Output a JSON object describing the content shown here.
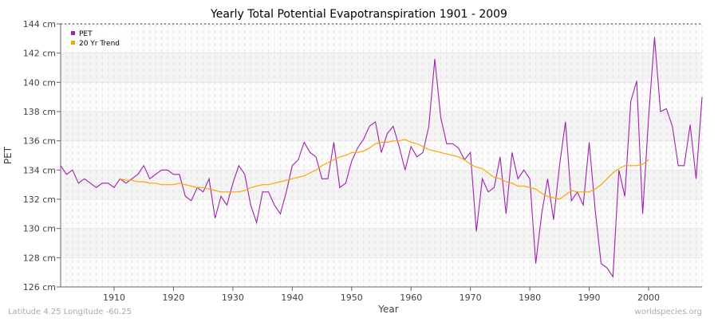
{
  "chart_data": {
    "type": "line",
    "title": "Yearly Total Potential Evapotranspiration 1901 - 2009",
    "xlabel": "Year",
    "ylabel": "PET",
    "ylim": [
      126,
      144
    ],
    "xlim": [
      1901,
      2009
    ],
    "yticks": [
      126,
      128,
      130,
      132,
      134,
      136,
      138,
      140,
      142,
      144
    ],
    "ytick_labels": [
      "126 cm",
      "128 cm",
      "130 cm",
      "132 cm",
      "134 cm",
      "136 cm",
      "138 cm",
      "140 cm",
      "142 cm",
      "144 cm"
    ],
    "xticks": [
      1910,
      1920,
      1930,
      1940,
      1950,
      1960,
      1970,
      1980,
      1990,
      2000
    ],
    "grid": true,
    "legend_position": "top-left",
    "series": [
      {
        "name": "PET",
        "color": "#a020b0",
        "x_start": 1901,
        "values": [
          134.3,
          133.7,
          134.0,
          133.1,
          133.4,
          133.1,
          132.8,
          133.1,
          133.1,
          132.8,
          133.4,
          133.1,
          133.4,
          133.7,
          134.3,
          133.4,
          133.7,
          134.0,
          134.0,
          133.7,
          133.7,
          132.2,
          131.9,
          132.8,
          132.5,
          133.4,
          130.7,
          132.2,
          131.6,
          133.1,
          134.3,
          133.7,
          131.6,
          130.4,
          132.5,
          132.5,
          131.6,
          131.0,
          132.5,
          134.3,
          134.7,
          135.9,
          135.2,
          134.9,
          133.4,
          133.4,
          135.9,
          132.8,
          133.1,
          134.6,
          135.5,
          136.1,
          137.0,
          137.3,
          135.2,
          136.5,
          137.0,
          135.6,
          134.0,
          135.6,
          134.9,
          135.2,
          137.0,
          141.6,
          137.6,
          135.8,
          135.8,
          135.5,
          134.7,
          135.2,
          129.8,
          133.4,
          132.5,
          132.8,
          134.9,
          131.0,
          135.2,
          133.4,
          134.0,
          133.4,
          127.6,
          131.0,
          133.4,
          130.6,
          134.3,
          137.3,
          131.9,
          132.5,
          131.6,
          135.9,
          131.3,
          127.6,
          127.3,
          126.7,
          134.0,
          132.2,
          138.7,
          140.1,
          131.0,
          137.6,
          143.1,
          138.0,
          138.2,
          137.0,
          134.3,
          134.3,
          137.1,
          133.4,
          139.0
        ]
      },
      {
        "name": "20 Yr Trend",
        "color": "#ffa500",
        "x_start": 1911,
        "values": [
          133.4,
          133.3,
          133.3,
          133.2,
          133.2,
          133.1,
          133.1,
          133.0,
          133.0,
          133.0,
          133.1,
          133.0,
          132.9,
          132.8,
          132.8,
          132.7,
          132.6,
          132.5,
          132.5,
          132.5,
          132.5,
          132.6,
          132.8,
          132.9,
          133.0,
          133.0,
          133.1,
          133.2,
          133.3,
          133.4,
          133.5,
          133.6,
          133.8,
          134.0,
          134.3,
          134.5,
          134.7,
          134.9,
          135.0,
          135.2,
          135.2,
          135.3,
          135.5,
          135.8,
          135.9,
          135.9,
          136.0,
          136.0,
          136.1,
          135.9,
          135.8,
          135.6,
          135.4,
          135.3,
          135.2,
          135.1,
          135.0,
          134.9,
          134.7,
          134.4,
          134.2,
          134.1,
          133.8,
          133.5,
          133.4,
          133.2,
          133.1,
          132.9,
          132.9,
          132.8,
          132.7,
          132.4,
          132.2,
          132.1,
          132.0,
          132.3,
          132.6,
          132.5,
          132.5,
          132.5,
          132.7,
          133.0,
          133.4,
          133.8,
          134.1,
          134.3,
          134.3,
          134.3,
          134.4,
          134.7
        ]
      }
    ]
  },
  "footer": {
    "left": "Latitude 4.25 Longitude -60.25",
    "right": "worldspecies.org"
  }
}
